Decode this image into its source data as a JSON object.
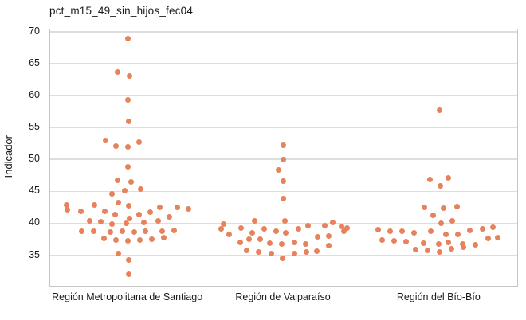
{
  "colors": {
    "point": "#e6825c",
    "grid": "#dedede",
    "frame": "#c6c6c6",
    "text": "#1a1a1a"
  },
  "chart_data": {
    "type": "scatter",
    "subtype": "strip-jitter",
    "title": "pct_m15_49_sin_hijos_fec04",
    "xlabel": "",
    "ylabel": "Indicador",
    "ylim": [
      30.2,
      70.35
    ],
    "y_ticks": [
      70,
      65,
      60,
      55,
      50,
      45,
      40,
      35
    ],
    "grid": true,
    "legend": "none",
    "categories": [
      "Región Metropolitana de Santiago",
      "Región de Valparaíso",
      "Región del Bío-Bío"
    ],
    "series": [
      {
        "name": "Región Metropolitana de Santiago",
        "points": [
          [
            0,
            68.9
          ],
          [
            -13,
            63.7
          ],
          [
            1.5,
            63.0
          ],
          [
            0,
            59.3
          ],
          [
            0.5,
            56.0
          ],
          [
            -28.3,
            52.9
          ],
          [
            -15,
            52.1
          ],
          [
            0,
            51.9
          ],
          [
            13.5,
            52.7
          ],
          [
            0,
            48.9
          ],
          [
            -12.7,
            46.7
          ],
          [
            4.3,
            46.5
          ],
          [
            -4.3,
            45.1
          ],
          [
            16,
            45.3
          ],
          [
            -20,
            44.6
          ],
          [
            -11.7,
            43.2
          ],
          [
            -77.3,
            42.9
          ],
          [
            -76,
            42.1
          ],
          [
            -59.3,
            41.8
          ],
          [
            -41.7,
            42.8
          ],
          [
            -29.3,
            41.9
          ],
          [
            -16,
            41.4
          ],
          [
            1,
            42.7
          ],
          [
            2.3,
            40.7
          ],
          [
            14,
            41.3
          ],
          [
            28.3,
            41.7
          ],
          [
            40,
            42.5
          ],
          [
            51.7,
            41.0
          ],
          [
            61.7,
            42.5
          ],
          [
            76,
            42.2
          ],
          [
            -48,
            40.4
          ],
          [
            -34.5,
            40.2
          ],
          [
            -20,
            39.9
          ],
          [
            -2.5,
            40.0
          ],
          [
            20,
            40.1
          ],
          [
            38,
            40.3
          ],
          [
            -58.3,
            38.8
          ],
          [
            -43.3,
            38.7
          ],
          [
            -21.7,
            38.6
          ],
          [
            -6.7,
            38.7
          ],
          [
            8.3,
            38.6
          ],
          [
            21.7,
            38.7
          ],
          [
            43.3,
            38.8
          ],
          [
            58.3,
            38.9
          ],
          [
            -30,
            37.6
          ],
          [
            -15,
            37.4
          ],
          [
            0,
            37.3
          ],
          [
            15,
            37.4
          ],
          [
            30,
            37.5
          ],
          [
            45,
            37.7
          ],
          [
            -11.7,
            35.3
          ],
          [
            0.7,
            34.2
          ],
          [
            0.7,
            32.0
          ]
        ]
      },
      {
        "name": "Región de Valparaíso",
        "points": [
          [
            -0.7,
            52.2
          ],
          [
            -0.7,
            50.0
          ],
          [
            -6.7,
            48.4
          ],
          [
            -0.7,
            46.6
          ],
          [
            -0.7,
            43.8
          ],
          [
            -76,
            39.9
          ],
          [
            -36.7,
            40.3
          ],
          [
            1.7,
            40.3
          ],
          [
            61.7,
            40.1
          ],
          [
            30.7,
            39.6
          ],
          [
            51.7,
            39.6
          ],
          [
            72.7,
            39.5
          ],
          [
            79.3,
            39.3
          ],
          [
            -78.3,
            39.1
          ],
          [
            -53.3,
            39.2
          ],
          [
            -25,
            39.1
          ],
          [
            -10,
            38.8
          ],
          [
            18.3,
            39.1
          ],
          [
            75,
            38.8
          ],
          [
            -68.3,
            38.2
          ],
          [
            -40,
            38.5
          ],
          [
            2.7,
            38.5
          ],
          [
            42.5,
            37.9
          ],
          [
            56,
            38.0
          ],
          [
            -55,
            37.0
          ],
          [
            -43.3,
            37.5
          ],
          [
            -29.3,
            37.5
          ],
          [
            -17.3,
            36.9
          ],
          [
            -2.7,
            36.7
          ],
          [
            13.3,
            37.0
          ],
          [
            27.3,
            36.8
          ],
          [
            56.7,
            36.5
          ],
          [
            -46.7,
            35.7
          ],
          [
            -31.7,
            35.5
          ],
          [
            -16,
            35.2
          ],
          [
            13.3,
            35.3
          ],
          [
            28.3,
            35.5
          ],
          [
            41.7,
            35.6
          ],
          [
            -1.7,
            34.5
          ]
        ]
      },
      {
        "name": "Región del Bío-Bío",
        "points": [
          [
            0,
            57.7
          ],
          [
            -12.3,
            46.8
          ],
          [
            11,
            47.1
          ],
          [
            0.7,
            45.8
          ],
          [
            -19,
            42.5
          ],
          [
            5,
            42.3
          ],
          [
            21.7,
            42.6
          ],
          [
            -7.7,
            41.2
          ],
          [
            1.7,
            40.0
          ],
          [
            16.3,
            40.4
          ],
          [
            -76.7,
            39.0
          ],
          [
            -62.3,
            38.8
          ],
          [
            -46.7,
            38.7
          ],
          [
            -31.7,
            38.5
          ],
          [
            -10.7,
            38.7
          ],
          [
            8.3,
            38.3
          ],
          [
            23.3,
            38.3
          ],
          [
            38.3,
            38.9
          ],
          [
            54,
            39.1
          ],
          [
            67.3,
            39.4
          ],
          [
            -72.3,
            37.4
          ],
          [
            -56.7,
            37.2
          ],
          [
            -41.7,
            37.1
          ],
          [
            -20,
            36.9
          ],
          [
            -0.7,
            36.7
          ],
          [
            11,
            37.0
          ],
          [
            29.3,
            36.7
          ],
          [
            45,
            36.6
          ],
          [
            60.7,
            37.6
          ],
          [
            72.7,
            37.7
          ],
          [
            -30,
            35.9
          ],
          [
            -15,
            35.7
          ],
          [
            0,
            35.5
          ],
          [
            15,
            36.0
          ],
          [
            30,
            36.2
          ]
        ]
      }
    ]
  }
}
